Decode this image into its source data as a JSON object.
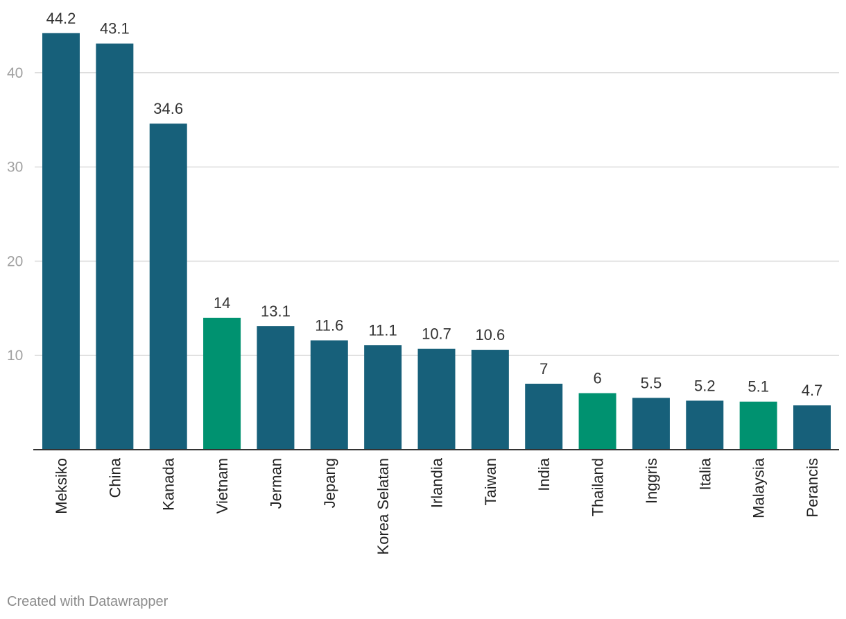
{
  "chart_data": {
    "type": "bar",
    "categories": [
      "Meksiko",
      "China",
      "Kanada",
      "Vietnam",
      "Jerman",
      "Jepang",
      "Korea Selatan",
      "Irlandia",
      "Taiwan",
      "India",
      "Thailand",
      "Inggris",
      "Italia",
      "Malaysia",
      "Perancis"
    ],
    "values": [
      44.2,
      43.1,
      34.6,
      14,
      13.1,
      11.6,
      11.1,
      10.7,
      10.6,
      7,
      6,
      5.5,
      5.2,
      5.1,
      4.7
    ],
    "value_labels": [
      "44.2",
      "43.1",
      "34.6",
      "14",
      "13.1",
      "11.6",
      "11.1",
      "10.7",
      "10.6",
      "7",
      "6",
      "5.5",
      "5.2",
      "5.1",
      "4.7"
    ],
    "highlighted": [
      "Vietnam",
      "Thailand",
      "Malaysia"
    ],
    "yticks": [
      10,
      20,
      30,
      40
    ],
    "ylim": [
      0,
      47
    ],
    "grid": true,
    "title": "",
    "xlabel": "",
    "ylabel": ""
  },
  "colors": {
    "bar": "#17607a",
    "highlight": "#009270",
    "grid": "#dddddd",
    "axis": "#333333",
    "tick_label": "#a0a0a0",
    "value_label": "#333333",
    "category_label": "#222222"
  },
  "credit": "Created with Datawrapper"
}
